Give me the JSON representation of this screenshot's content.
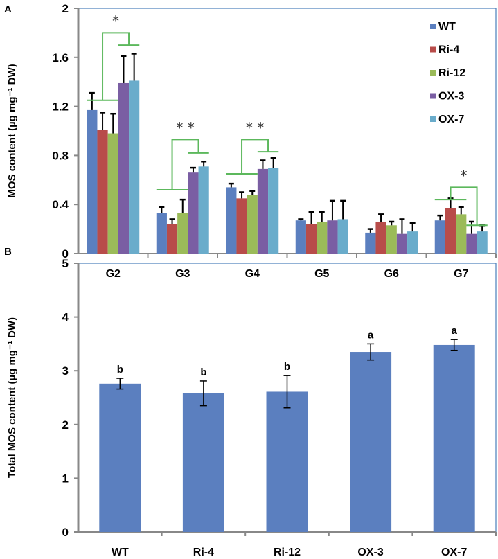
{
  "chart_data": [
    {
      "panel": "A",
      "type": "bar",
      "title": "",
      "xlabel": "",
      "ylabel": "MOS content (µg mg⁻¹ DW)",
      "ylim": [
        0,
        2
      ],
      "yticks": [
        "0",
        "0.4",
        "0.8",
        "1.2",
        "1.6",
        "2"
      ],
      "categories": [
        "G2",
        "G3",
        "G4",
        "G5",
        "G6",
        "G7"
      ],
      "legend_position": "top-right",
      "series": [
        {
          "name": "WT",
          "color": "#5b7fbf",
          "values": [
            1.17,
            0.33,
            0.54,
            0.27,
            0.17,
            0.27
          ],
          "errors": [
            0.14,
            0.05,
            0.03,
            0.01,
            0.03,
            0.04
          ]
        },
        {
          "name": "Ri-4",
          "color": "#b84c4a",
          "values": [
            1.01,
            0.24,
            0.45,
            0.24,
            0.26,
            0.37
          ],
          "errors": [
            0.14,
            0.04,
            0.05,
            0.1,
            0.06,
            0.08
          ]
        },
        {
          "name": "Ri-12",
          "color": "#9bbb59",
          "values": [
            0.98,
            0.33,
            0.48,
            0.26,
            0.23,
            0.32
          ],
          "errors": [
            0.16,
            0.11,
            0.03,
            0.08,
            0.03,
            0.06
          ]
        },
        {
          "name": "OX-3",
          "color": "#7a5ea3",
          "values": [
            1.39,
            0.66,
            0.69,
            0.27,
            0.16,
            0.16
          ],
          "errors": [
            0.22,
            0.04,
            0.07,
            0.16,
            0.12,
            0.1
          ]
        },
        {
          "name": "OX-7",
          "color": "#6aaccb",
          "values": [
            1.41,
            0.71,
            0.7,
            0.28,
            0.18,
            0.18
          ],
          "errors": [
            0.22,
            0.04,
            0.08,
            0.15,
            0.07,
            0.05
          ]
        }
      ],
      "annotations": [
        {
          "category": "G2",
          "label": "*",
          "left_level": 1.25,
          "right_level": 1.7,
          "top_level": 1.8
        },
        {
          "category": "G3",
          "label": "* *",
          "left_level": 0.52,
          "right_level": 0.82,
          "top_level": 0.93
        },
        {
          "category": "G4",
          "label": "* *",
          "left_level": 0.65,
          "right_level": 0.83,
          "top_level": 0.93
        },
        {
          "category": "G7",
          "label": "*",
          "left_level": 0.44,
          "right_level": 0.23,
          "top_level": 0.54
        }
      ]
    },
    {
      "panel": "B",
      "type": "bar",
      "title": "",
      "xlabel": "",
      "ylabel": "Total MOS content (µg mg⁻¹ DW)",
      "ylim": [
        0,
        5
      ],
      "yticks": [
        "0",
        "1",
        "2",
        "3",
        "4",
        "5"
      ],
      "categories": [
        "WT",
        "Ri-4",
        "Ri-12",
        "OX-3",
        "OX-7"
      ],
      "color": "#5b7fbf",
      "values": [
        2.76,
        2.58,
        2.61,
        3.35,
        3.48
      ],
      "errors": [
        0.1,
        0.23,
        0.3,
        0.15,
        0.1
      ],
      "letters": [
        "b",
        "b",
        "b",
        "a",
        "a"
      ]
    }
  ]
}
